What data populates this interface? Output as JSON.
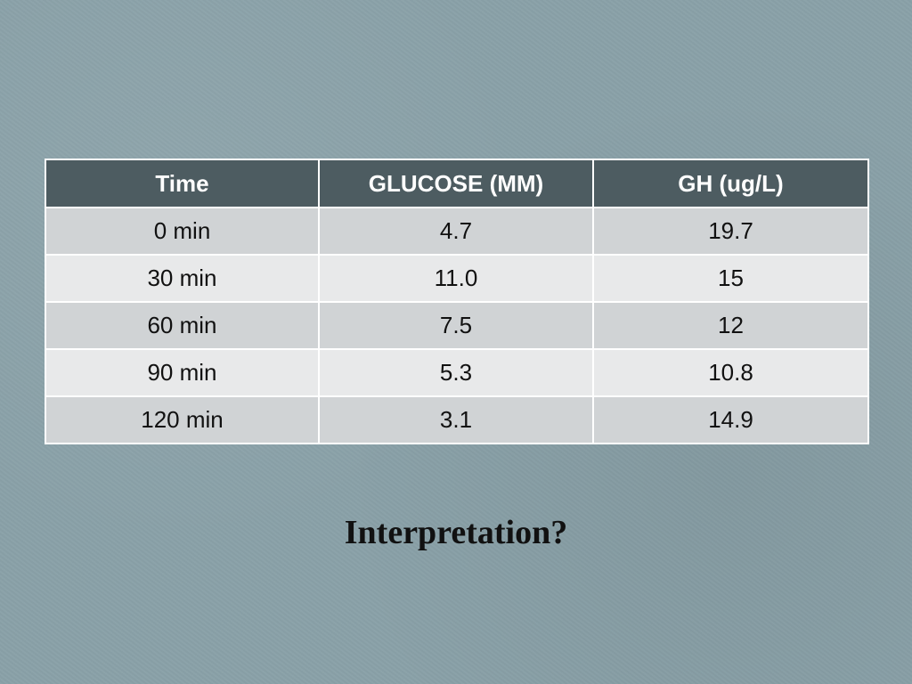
{
  "table": {
    "headers": [
      "Time",
      "GLUCOSE (MM)",
      "GH (ug/L)"
    ],
    "rows": [
      [
        "0 min",
        "4.7",
        "19.7"
      ],
      [
        "30 min",
        "11.0",
        "15"
      ],
      [
        "60 min",
        "7.5",
        "12"
      ],
      [
        "90 min",
        "5.3",
        "10.8"
      ],
      [
        "120 min",
        "3.1",
        "14.9"
      ]
    ]
  },
  "caption": "Interpretation?",
  "colors": {
    "background": "#8aa1a8",
    "header_bg": "#4d5c61",
    "row_odd": "#d0d3d5",
    "row_even": "#e8e9ea"
  }
}
